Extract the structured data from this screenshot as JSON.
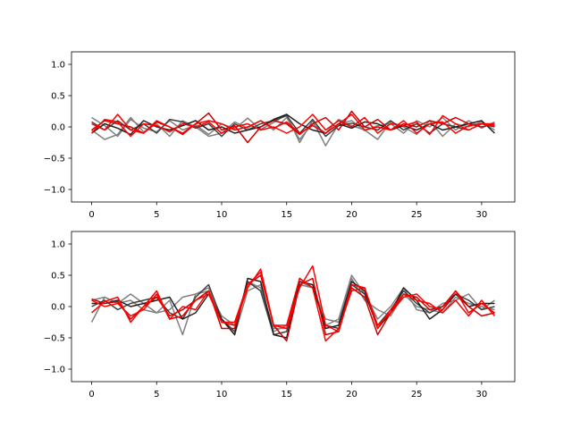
{
  "chart_data": [
    {
      "type": "line",
      "title": "",
      "xlabel": "",
      "ylabel": "",
      "xlim": [
        -1.55,
        32.55
      ],
      "ylim": [
        -1.2,
        1.2
      ],
      "x_ticks": [
        0,
        5,
        10,
        15,
        20,
        25,
        30
      ],
      "y_ticks": [
        -1.0,
        -0.5,
        0.0,
        0.5,
        1.0
      ],
      "x_tick_labels": [
        "0",
        "5",
        "10",
        "15",
        "20",
        "25",
        "30"
      ],
      "y_tick_labels": [
        "−1.0",
        "−0.5",
        "0.0",
        "0.5",
        "1.0"
      ],
      "grid": false,
      "series": [
        {
          "color": "#808080",
          "values": [
            0.15,
            0.02,
            -0.15,
            0.12,
            -0.02,
            -0.08,
            0.1,
            -0.05,
            0.03,
            -0.12,
            0.05,
            -0.03,
            0.14,
            -0.04,
            0.07,
            0.2,
            -0.25,
            0.1,
            -0.3,
            0.05,
            0.1,
            -0.06,
            0.02,
            0.05,
            -0.1,
            0.1,
            0.0,
            0.15,
            -0.05,
            0.1,
            -0.02,
            0.08
          ]
        },
        {
          "color": "#808080",
          "values": [
            -0.05,
            -0.2,
            -0.12,
            0.15,
            -0.08,
            0.05,
            -0.15,
            0.1,
            0.0,
            -0.15,
            -0.1,
            0.08,
            -0.02,
            0.1,
            -0.05,
            0.15,
            -0.2,
            0.05,
            -0.1,
            0.12,
            0.02,
            -0.05,
            -0.2,
            0.08,
            0.0,
            -0.12,
            0.1,
            -0.15,
            0.05,
            0.0,
            0.08,
            -0.05
          ]
        },
        {
          "color": "#404040",
          "values": [
            0.08,
            -0.05,
            0.1,
            -0.05,
            0.05,
            -0.1,
            0.12,
            0.08,
            -0.02,
            0.05,
            -0.15,
            0.05,
            -0.05,
            0.05,
            0.1,
            0.18,
            -0.1,
            0.12,
            -0.15,
            0.02,
            0.06,
            0.0,
            -0.05,
            0.1,
            -0.05,
            0.05,
            -0.1,
            0.05,
            0.0,
            -0.05,
            0.05,
            0.0
          ]
        },
        {
          "color": "#202020",
          "values": [
            -0.1,
            0.05,
            -0.02,
            -0.12,
            0.1,
            0.0,
            -0.05,
            0.02,
            0.1,
            -0.05,
            0.0,
            -0.1,
            -0.05,
            0.0,
            0.12,
            0.2,
            0.05,
            -0.05,
            -0.1,
            0.05,
            -0.02,
            0.08,
            0.05,
            -0.05,
            0.02,
            -0.05,
            0.05,
            -0.05,
            0.0,
            0.05,
            0.1,
            -0.1
          ]
        },
        {
          "color": "#cc0000",
          "values": [
            -0.05,
            0.1,
            0.05,
            0.0,
            -0.1,
            0.08,
            0.0,
            -0.12,
            0.05,
            0.22,
            -0.05,
            0.02,
            -0.25,
            0.0,
            0.1,
            0.05,
            -0.12,
            0.05,
            0.15,
            -0.05,
            0.25,
            0.0,
            0.12,
            -0.05,
            0.05,
            0.0,
            0.1,
            0.05,
            0.15,
            0.05,
            0.0,
            0.05
          ]
        },
        {
          "color": "#ff0000",
          "values": [
            -0.1,
            0.12,
            0.08,
            -0.15,
            0.05,
            0.02,
            -0.08,
            0.05,
            0.0,
            0.08,
            -0.1,
            0.0,
            0.05,
            -0.05,
            0.0,
            -0.1,
            0.0,
            0.2,
            -0.05,
            0.1,
            0.0,
            0.15,
            -0.1,
            0.05,
            0.02,
            0.08,
            -0.12,
            0.18,
            0.05,
            -0.05,
            0.05,
            0.02
          ]
        },
        {
          "color": "#ff0000",
          "values": [
            0.05,
            -0.05,
            0.2,
            -0.05,
            -0.1,
            0.1,
            0.0,
            -0.1,
            0.05,
            0.1,
            0.05,
            -0.05,
            0.0,
            0.1,
            -0.02,
            0.08,
            -0.1,
            0.02,
            -0.1,
            0.05,
            0.2,
            -0.05,
            0.0,
            -0.05,
            0.1,
            -0.1,
            0.05,
            0.08,
            -0.1,
            0.02,
            0.05,
            0.05
          ]
        }
      ]
    },
    {
      "type": "line",
      "title": "",
      "xlabel": "",
      "ylabel": "",
      "xlim": [
        -1.55,
        32.55
      ],
      "ylim": [
        -1.2,
        1.2
      ],
      "x_ticks": [
        0,
        5,
        10,
        15,
        20,
        25,
        30
      ],
      "y_ticks": [
        -1.0,
        -0.5,
        0.0,
        0.5,
        1.0
      ],
      "x_tick_labels": [
        "0",
        "5",
        "10",
        "15",
        "20",
        "25",
        "30"
      ],
      "y_tick_labels": [
        "−1.0",
        "−0.5",
        "0.0",
        "0.5",
        "1.0"
      ],
      "grid": false,
      "series": [
        {
          "color": "#808080",
          "values": [
            -0.25,
            0.15,
            0.05,
            0.1,
            -0.05,
            -0.1,
            0.1,
            -0.45,
            0.2,
            0.3,
            -0.2,
            -0.45,
            0.25,
            0.35,
            -0.4,
            -0.3,
            0.4,
            0.3,
            -0.3,
            -0.2,
            0.5,
            0.2,
            -0.2,
            0.0,
            0.3,
            -0.05,
            -0.1,
            0.05,
            0.1,
            0.2,
            -0.05,
            0.1
          ]
        },
        {
          "color": "#808080",
          "values": [
            0.1,
            0.15,
            0.05,
            0.2,
            0.05,
            -0.1,
            -0.05,
            0.15,
            0.2,
            0.25,
            -0.15,
            -0.3,
            0.4,
            0.3,
            -0.35,
            -0.35,
            0.35,
            0.3,
            -0.2,
            -0.25,
            0.45,
            0.1,
            -0.05,
            -0.15,
            0.2,
            0.0,
            -0.05,
            -0.1,
            0.15,
            0.05,
            0.0,
            -0.05
          ]
        },
        {
          "color": "#404040",
          "values": [
            0.0,
            0.1,
            -0.05,
            0.05,
            0.1,
            0.15,
            -0.1,
            -0.2,
            0.15,
            0.35,
            -0.2,
            -0.4,
            0.4,
            0.25,
            -0.45,
            -0.4,
            0.45,
            0.3,
            -0.3,
            -0.35,
            0.35,
            0.2,
            -0.3,
            -0.05,
            0.25,
            0.05,
            -0.1,
            0.0,
            0.2,
            0.1,
            -0.05,
            0.0
          ]
        },
        {
          "color": "#202020",
          "values": [
            0.05,
            0.05,
            0.1,
            0.0,
            0.05,
            0.1,
            0.15,
            -0.2,
            -0.1,
            0.2,
            -0.2,
            -0.45,
            0.45,
            0.4,
            -0.45,
            -0.5,
            0.4,
            0.35,
            -0.35,
            -0.3,
            0.4,
            0.25,
            -0.35,
            -0.1,
            0.3,
            0.1,
            -0.2,
            -0.05,
            0.2,
            0.0,
            0.05,
            0.05
          ]
        },
        {
          "color": "#cc0000",
          "values": [
            0.12,
            0.05,
            0.08,
            -0.2,
            0.0,
            0.15,
            -0.15,
            -0.05,
            0.1,
            0.25,
            -0.35,
            -0.35,
            0.35,
            0.5,
            -0.3,
            -0.55,
            0.35,
            0.45,
            -0.45,
            -0.4,
            0.3,
            0.15,
            -0.45,
            -0.1,
            0.2,
            0.15,
            -0.05,
            0.0,
            0.25,
            0.0,
            -0.15,
            -0.1
          ]
        },
        {
          "color": "#ff0000",
          "values": [
            -0.1,
            0.08,
            0.15,
            -0.25,
            0.0,
            0.25,
            -0.2,
            0.0,
            -0.05,
            0.25,
            -0.25,
            -0.3,
            0.3,
            0.6,
            -0.3,
            -0.3,
            0.45,
            0.3,
            -0.55,
            -0.35,
            0.25,
            0.3,
            -0.3,
            -0.1,
            0.15,
            0.2,
            0.0,
            -0.05,
            0.25,
            -0.1,
            0.05,
            -0.1
          ]
        },
        {
          "color": "#ff0000",
          "values": [
            0.1,
            0.0,
            0.05,
            -0.15,
            -0.05,
            0.2,
            -0.2,
            -0.15,
            0.1,
            0.2,
            -0.25,
            -0.25,
            0.35,
            0.55,
            -0.3,
            -0.35,
            0.3,
            0.65,
            -0.3,
            -0.4,
            0.35,
            0.3,
            -0.35,
            -0.05,
            0.2,
            0.1,
            0.05,
            -0.1,
            0.1,
            -0.15,
            0.1,
            -0.15
          ]
        }
      ]
    }
  ]
}
